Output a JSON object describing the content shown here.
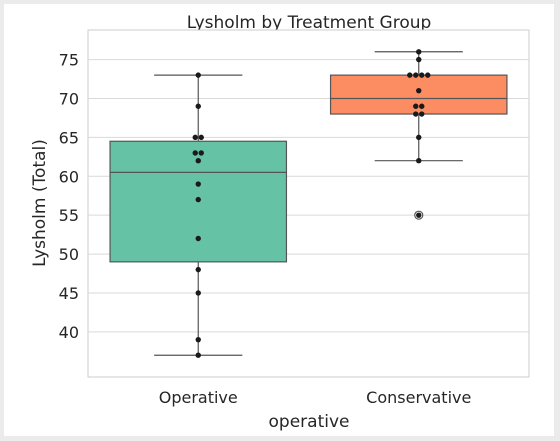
{
  "chart_data": {
    "type": "box",
    "title": "Lysholm by Treatment Group",
    "xlabel": "operative",
    "ylabel": "Lysholm (Total)",
    "ylim": [
      34.2,
      78.8
    ],
    "yticks": [
      40,
      45,
      50,
      55,
      60,
      65,
      70,
      75
    ],
    "grid": true,
    "categories": [
      "Operative",
      "Conservative"
    ],
    "boxes": [
      {
        "category": "Operative",
        "color": "#66c2a5",
        "q1": 49,
        "median": 60.5,
        "q3": 64.5,
        "whisker_low": 37,
        "whisker_high": 73,
        "outliers": [],
        "points": [
          73,
          69,
          65,
          65,
          63,
          63,
          62,
          59,
          57,
          52,
          48,
          45,
          39,
          37
        ]
      },
      {
        "category": "Conservative",
        "color": "#fc8d62",
        "q1": 68,
        "median": 70,
        "q3": 73,
        "whisker_low": 62,
        "whisker_high": 76,
        "outliers": [
          55
        ],
        "points": [
          76,
          75,
          73,
          73,
          73,
          73,
          71,
          69,
          69,
          68,
          68,
          65,
          62,
          55
        ]
      }
    ]
  }
}
